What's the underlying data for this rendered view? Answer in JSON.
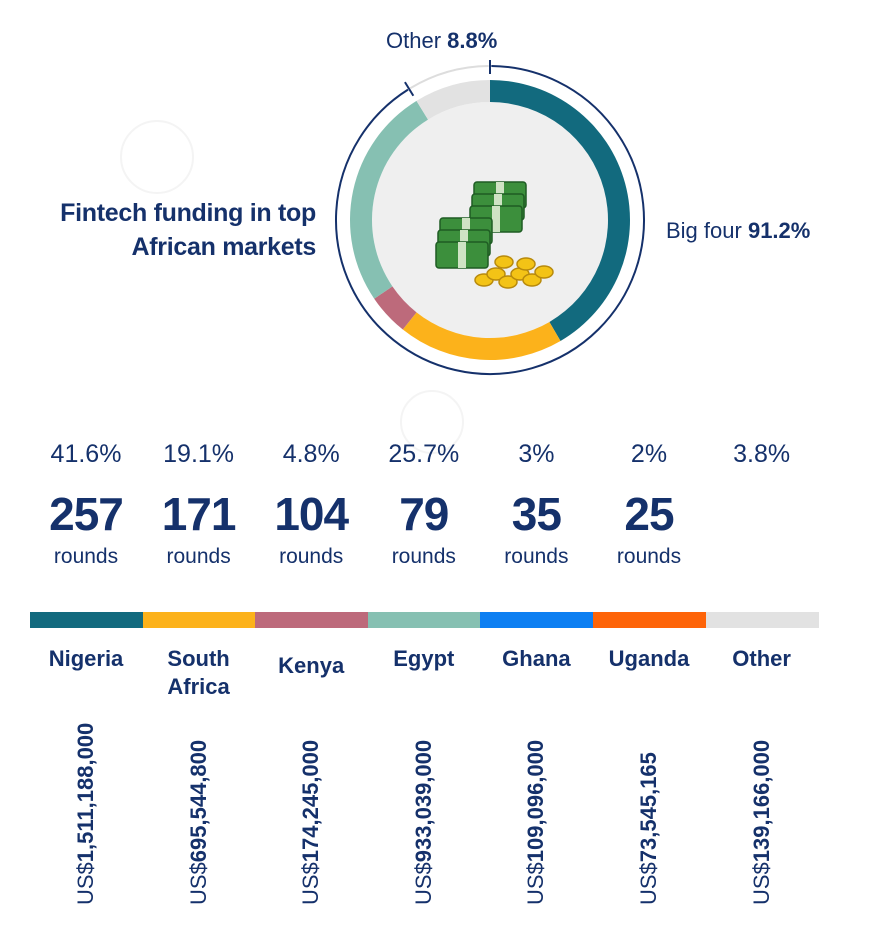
{
  "chart_data": {
    "title": [
      "Fintech funding in top",
      "African markets"
    ],
    "donut": {
      "type": "pie",
      "slices": [
        {
          "name": "Nigeria",
          "value": 41.6,
          "color": "#126a7e"
        },
        {
          "name": "South Africa",
          "value": 19.1,
          "color": "#fcb21b"
        },
        {
          "name": "Kenya",
          "value": 4.8,
          "color": "#bd6a7b"
        },
        {
          "name": "Egypt",
          "value": 25.7,
          "color": "#86c0b2"
        },
        {
          "name": "Other",
          "value": 8.8,
          "color": "#e2e2e2"
        }
      ],
      "callouts": {
        "other": {
          "label": "Other",
          "value": "8.8%"
        },
        "big_four": {
          "label": "Big four",
          "value": "91.2%"
        }
      }
    },
    "type": "bar",
    "rounds_label": "rounds",
    "currency_prefix": "US$",
    "categories": [
      {
        "name": [
          "Nigeria"
        ],
        "share": "41.6%",
        "rounds": "257",
        "amount": "1,511,188,000",
        "color": "#126a7e",
        "value": 41.6
      },
      {
        "name": [
          "South",
          "Africa"
        ],
        "share": "19.1%",
        "rounds": "171",
        "amount": "695,544,800",
        "color": "#fcb21b",
        "value": 19.1
      },
      {
        "name": [
          "Kenya"
        ],
        "share": "4.8%",
        "rounds": "104",
        "amount": "174,245,000",
        "color": "#bd6a7b",
        "value": 4.8
      },
      {
        "name": [
          "Egypt"
        ],
        "share": "25.7%",
        "rounds": "79",
        "amount": "933,039,000",
        "color": "#86c0b2",
        "value": 25.7
      },
      {
        "name": [
          "Ghana"
        ],
        "share": "3%",
        "rounds": "35",
        "amount": "109,096,000",
        "color": "#0d7ff2",
        "value": 3
      },
      {
        "name": [
          "Uganda"
        ],
        "share": "2%",
        "rounds": "25",
        "amount": "73,545,165",
        "color": "#fe6408",
        "value": 2
      },
      {
        "name": [
          "Other"
        ],
        "share": "3.8%",
        "rounds": "",
        "amount": "139,166,000",
        "color": "#e2e2e2",
        "value": 3.8
      }
    ]
  }
}
